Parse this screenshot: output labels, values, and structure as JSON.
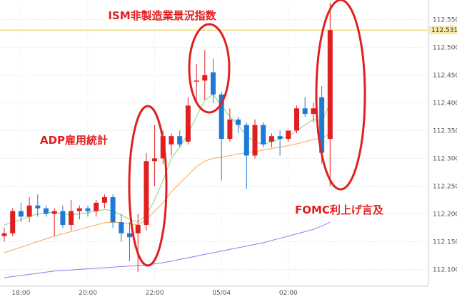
{
  "chart_data": {
    "type": "candlestick",
    "title": "",
    "xlabel": "",
    "ylabel": "",
    "ylim": [
      112.08,
      112.58
    ],
    "y_ticks": [
      "112.550",
      "112.500",
      "112.450",
      "112.400",
      "112.350",
      "112.300",
      "112.250",
      "112.200",
      "112.150",
      "112.100"
    ],
    "x_ticks": [
      {
        "label": "18:00",
        "index": 2
      },
      {
        "label": "20:00",
        "index": 10
      },
      {
        "label": "22:00",
        "index": 18
      },
      {
        "label": "05/04",
        "index": 26
      },
      {
        "label": "02:00",
        "index": 34
      }
    ],
    "current_price": "112.531",
    "grid": true,
    "colors": {
      "up": "#e02020",
      "down": "#1f7ad6",
      "ma_short": "#8bd17c",
      "ma_mid": "#f5a65b",
      "ma_long": "#8b7cf0",
      "price_line": "#e8c840",
      "annotation": "#e02020"
    },
    "candles": [
      {
        "o": 112.16,
        "h": 112.175,
        "l": 112.15,
        "c": 112.165
      },
      {
        "o": 112.165,
        "h": 112.21,
        "l": 112.16,
        "c": 112.205
      },
      {
        "o": 112.205,
        "h": 112.22,
        "l": 112.185,
        "c": 112.195
      },
      {
        "o": 112.195,
        "h": 112.23,
        "l": 112.185,
        "c": 112.215
      },
      {
        "o": 112.215,
        "h": 112.235,
        "l": 112.195,
        "c": 112.21
      },
      {
        "o": 112.21,
        "h": 112.215,
        "l": 112.195,
        "c": 112.2
      },
      {
        "o": 112.2,
        "h": 112.21,
        "l": 112.16,
        "c": 112.205
      },
      {
        "o": 112.205,
        "h": 112.215,
        "l": 112.175,
        "c": 112.18
      },
      {
        "o": 112.18,
        "h": 112.225,
        "l": 112.17,
        "c": 112.205
      },
      {
        "o": 112.205,
        "h": 112.215,
        "l": 112.19,
        "c": 112.21
      },
      {
        "o": 112.21,
        "h": 112.215,
        "l": 112.195,
        "c": 112.205
      },
      {
        "o": 112.205,
        "h": 112.225,
        "l": 112.195,
        "c": 112.22
      },
      {
        "o": 112.22,
        "h": 112.235,
        "l": 112.21,
        "c": 112.23
      },
      {
        "o": 112.23,
        "h": 112.235,
        "l": 112.175,
        "c": 112.185
      },
      {
        "o": 112.185,
        "h": 112.2,
        "l": 112.15,
        "c": 112.165
      },
      {
        "o": 112.165,
        "h": 112.185,
        "l": 112.115,
        "c": 112.158
      },
      {
        "o": 112.165,
        "h": 112.2,
        "l": 112.095,
        "c": 112.18
      },
      {
        "o": 112.18,
        "h": 112.31,
        "l": 112.17,
        "c": 112.295
      },
      {
        "o": 112.295,
        "h": 112.36,
        "l": 112.25,
        "c": 112.3
      },
      {
        "o": 112.3,
        "h": 112.35,
        "l": 112.29,
        "c": 112.34
      },
      {
        "o": 112.325,
        "h": 112.345,
        "l": 112.305,
        "c": 112.34
      },
      {
        "o": 112.34,
        "h": 112.35,
        "l": 112.32,
        "c": 112.325
      },
      {
        "o": 112.33,
        "h": 112.41,
        "l": 112.325,
        "c": 112.395
      },
      {
        "o": 112.44,
        "h": 112.47,
        "l": 112.4,
        "c": 112.44
      },
      {
        "o": 112.44,
        "h": 112.495,
        "l": 112.405,
        "c": 112.45
      },
      {
        "o": 112.455,
        "h": 112.48,
        "l": 112.4,
        "c": 112.415
      },
      {
        "o": 112.415,
        "h": 112.42,
        "l": 112.26,
        "c": 112.335
      },
      {
        "o": 112.335,
        "h": 112.39,
        "l": 112.33,
        "c": 112.37
      },
      {
        "o": 112.37,
        "h": 112.375,
        "l": 112.345,
        "c": 112.36
      },
      {
        "o": 112.36,
        "h": 112.365,
        "l": 112.245,
        "c": 112.305
      },
      {
        "o": 112.305,
        "h": 112.37,
        "l": 112.3,
        "c": 112.36
      },
      {
        "o": 112.36,
        "h": 112.365,
        "l": 112.32,
        "c": 112.325
      },
      {
        "o": 112.33,
        "h": 112.345,
        "l": 112.32,
        "c": 112.34
      },
      {
        "o": 112.34,
        "h": 112.35,
        "l": 112.305,
        "c": 112.335
      },
      {
        "o": 112.335,
        "h": 112.35,
        "l": 112.33,
        "c": 112.35
      },
      {
        "o": 112.35,
        "h": 112.395,
        "l": 112.345,
        "c": 112.39
      },
      {
        "o": 112.39,
        "h": 112.41,
        "l": 112.375,
        "c": 112.38
      },
      {
        "o": 112.38,
        "h": 112.4,
        "l": 112.365,
        "c": 112.39
      },
      {
        "o": 112.41,
        "h": 112.43,
        "l": 112.29,
        "c": 112.31
      },
      {
        "o": 112.335,
        "h": 112.58,
        "l": 112.25,
        "c": 112.531
      }
    ],
    "ma_short": [
      112.18,
      112.185,
      112.19,
      112.195,
      112.2,
      112.202,
      112.203,
      112.2,
      112.198,
      112.2,
      112.202,
      112.205,
      112.208,
      112.205,
      112.198,
      112.19,
      112.185,
      112.198,
      112.225,
      112.26,
      112.3,
      112.32,
      112.345,
      112.375,
      112.405,
      112.415,
      112.395,
      112.375,
      112.36,
      112.34,
      112.33,
      112.325,
      112.33,
      112.335,
      112.34,
      112.35,
      112.36,
      112.37,
      112.365,
      112.4
    ],
    "ma_mid": [
      112.13,
      112.135,
      112.14,
      112.145,
      112.15,
      112.155,
      112.16,
      112.164,
      112.168,
      112.172,
      112.176,
      112.18,
      112.184,
      112.185,
      112.184,
      112.182,
      112.18,
      112.19,
      112.205,
      112.22,
      112.24,
      112.255,
      112.27,
      112.285,
      112.295,
      112.3,
      112.302,
      112.305,
      112.308,
      112.31,
      112.312,
      112.315,
      112.318,
      112.32,
      112.323,
      112.326,
      112.33,
      112.334,
      112.336,
      112.345
    ],
    "ma_long": [
      112.085,
      112.087,
      112.089,
      112.091,
      112.093,
      112.095,
      112.097,
      112.098,
      112.099,
      112.1,
      112.101,
      112.102,
      112.103,
      112.104,
      112.105,
      112.106,
      112.107,
      112.108,
      112.11,
      112.112,
      112.115,
      112.118,
      112.121,
      112.124,
      112.127,
      112.13,
      112.133,
      112.136,
      112.139,
      112.142,
      112.145,
      112.148,
      112.152,
      112.156,
      112.16,
      112.164,
      112.168,
      112.172,
      112.178,
      112.185
    ],
    "annotations": [
      {
        "label": "ISM非製造業景況指数",
        "name": "annotation-ism"
      },
      {
        "label": "ADP雇用統計",
        "name": "annotation-adp"
      },
      {
        "label": "FOMC利上げ言及",
        "name": "annotation-fomc"
      }
    ]
  }
}
